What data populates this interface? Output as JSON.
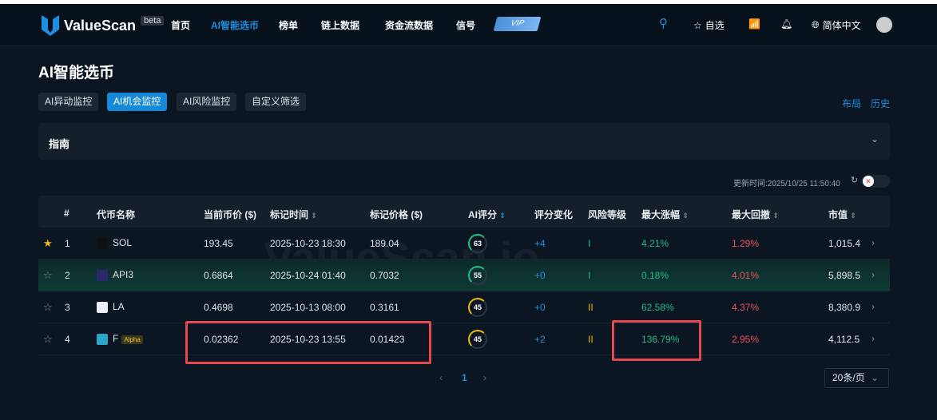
{
  "header": {
    "brand": "ValueScan",
    "beta": "beta",
    "nav": [
      "首页",
      "AI智能选币",
      "榜单",
      "链上数据",
      "资金流数据",
      "信号"
    ],
    "active_nav": 1,
    "vip": "VIP",
    "watchlist": "自选",
    "language": "简体中文"
  },
  "page": {
    "title": "AI智能选币",
    "tabs": [
      "AI异动监控",
      "AI机会监控",
      "AI风险监控",
      "自定义筛选"
    ],
    "active_tab": 1,
    "layout_link": "布局",
    "history_link": "历史",
    "guide": "指南",
    "update_time": "更新时间:2025/10/25 11:50:40",
    "watermark": "ValueScan.io"
  },
  "table": {
    "columns": [
      "#",
      "代币名称",
      "当前币价 ($)",
      "标记时间",
      "标记价格 ($)",
      "AI评分",
      "评分变化",
      "风险等级",
      "最大涨幅",
      "最大回撤",
      "市值"
    ],
    "rows": [
      {
        "rank": "1",
        "starred": true,
        "token": "SOL",
        "price": "193.45",
        "time": "2025-10-23 18:30",
        "mark_price": "189.04",
        "score": "63",
        "change": "+4",
        "risk": "I",
        "max_gain": "4.21%",
        "max_dd": "1.29%",
        "mcap": "1,015.4"
      },
      {
        "rank": "2",
        "starred": false,
        "token": "API3",
        "price": "0.6864",
        "time": "2025-10-24 01:40",
        "mark_price": "0.7032",
        "score": "55",
        "change": "+0",
        "risk": "I",
        "max_gain": "0.18%",
        "max_dd": "4.01%",
        "mcap": "5,898.5"
      },
      {
        "rank": "3",
        "starred": false,
        "token": "LA",
        "price": "0.4698",
        "time": "2025-10-13 08:00",
        "mark_price": "0.3161",
        "score": "45",
        "change": "+0",
        "risk": "II",
        "max_gain": "62.58%",
        "max_dd": "4.37%",
        "mcap": "8,380.9"
      },
      {
        "rank": "4",
        "starred": false,
        "token": "F",
        "badge": "Alpha",
        "price": "0.02362",
        "time": "2025-10-23 13:55",
        "mark_price": "0.01423",
        "score": "45",
        "change": "+2",
        "risk": "II",
        "max_gain": "136.79%",
        "max_dd": "2.95%",
        "mcap": "4,112.5"
      }
    ]
  },
  "pagination": {
    "prev": "‹",
    "current": "1",
    "next": "›",
    "page_size": "20条/页"
  },
  "colors": {
    "accent": "#1e8fe0",
    "positive": "#1fbf86",
    "negative": "#f0505c",
    "highlight_box": "#e5484d"
  }
}
